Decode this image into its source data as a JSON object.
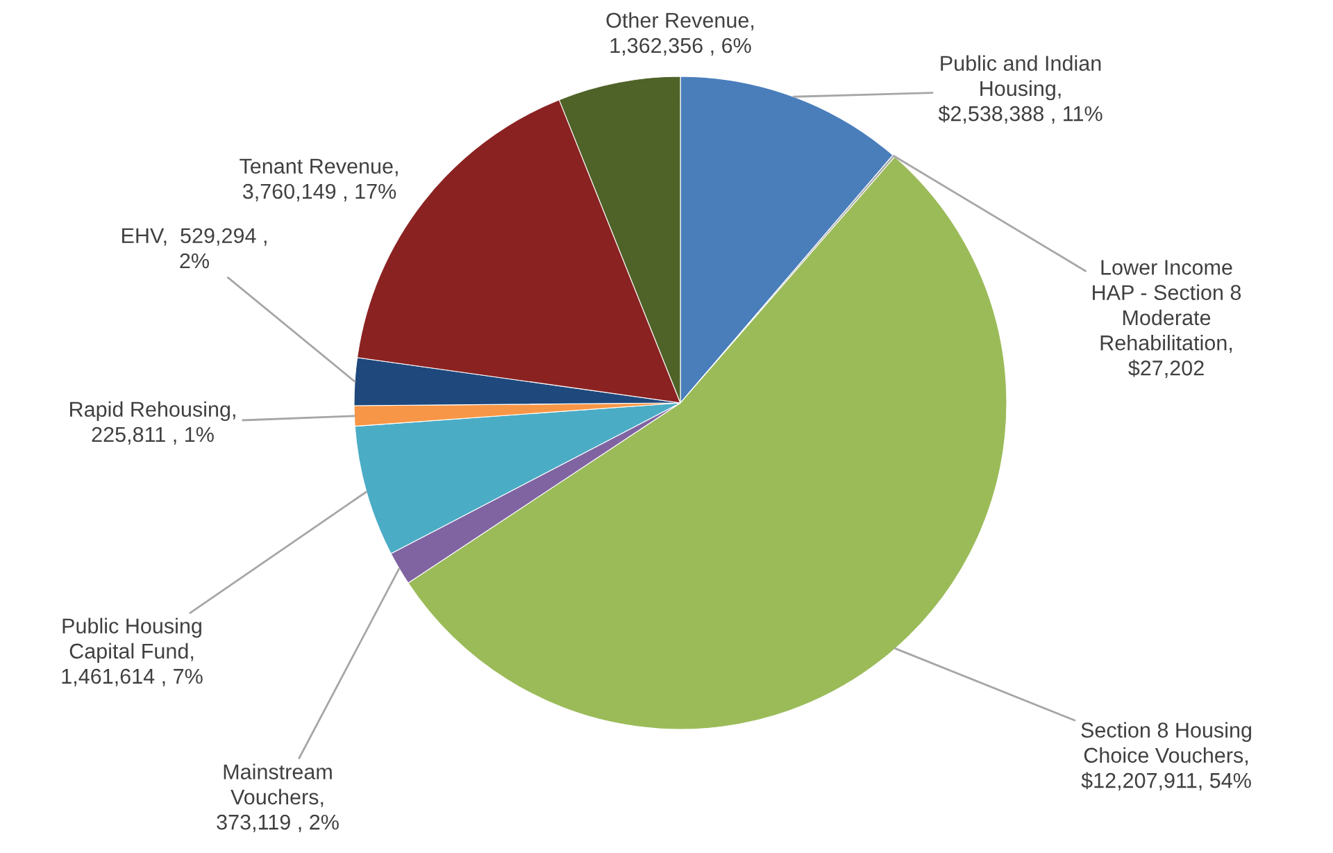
{
  "chart_data": {
    "type": "pie",
    "categories": [
      "Public and Indian\nHousing,\n$2,538,388 , 11%",
      "Lower Income\nHAP - Section 8\nModerate\nRehabilitation,\n$27,202",
      "Section 8 Housing\nChoice Vouchers,\n$12,207,911, 54%",
      "Mainstream\nVouchers,\n373,119 , 2%",
      "Public Housing\nCapital Fund,\n1,461,614 , 7%",
      "Rapid Rehousing,\n225,811 , 1%",
      "EHV,  529,294 ,\n2%",
      "Tenant Revenue,\n3,760,149 , 17%",
      "Other Revenue,\n1,362,356 , 6%"
    ],
    "values": [
      2538388,
      27202,
      12207911,
      373119,
      1461614,
      225811,
      529294,
      3760149,
      1362356
    ],
    "colors": [
      "#4a7ebb",
      "#a5a5a5",
      "#9bbb59",
      "#8064a2",
      "#4bacc6",
      "#f79646",
      "#1f497d",
      "#8b2222",
      "#4f6228"
    ]
  }
}
